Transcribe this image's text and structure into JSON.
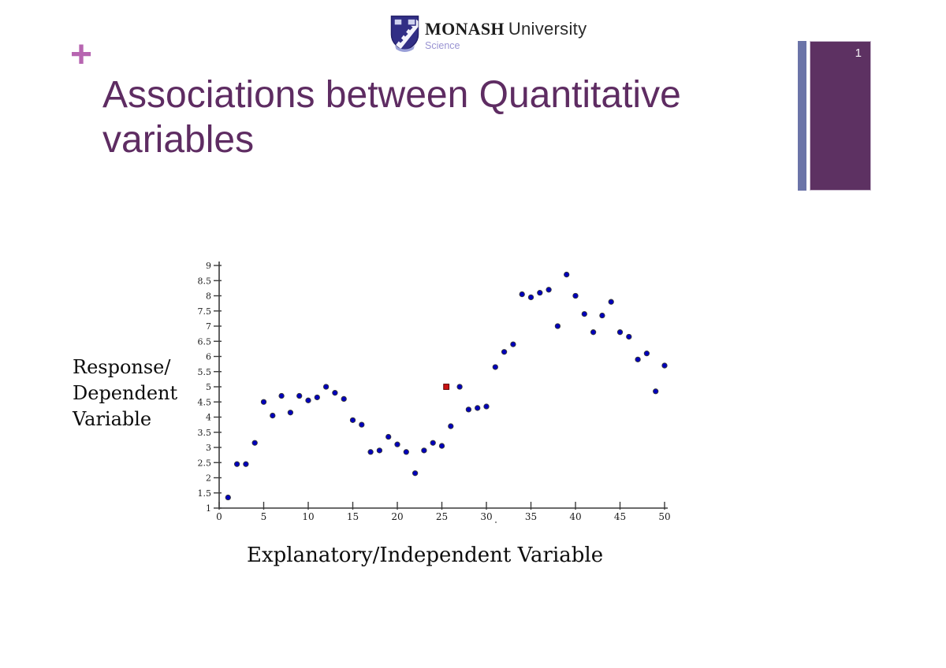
{
  "slide": {
    "plus_mark": "+",
    "title": {
      "line1": "Associations between Quantitative",
      "line2": "variables"
    },
    "page_number": "1"
  },
  "logo": {
    "wordmark": "MONASH",
    "wordmark_suffix": "University",
    "faculty": "Science"
  },
  "chart_labels": {
    "y_label_lines": [
      "Response/",
      "Dependent",
      "Variable"
    ],
    "x_label": "Explanatory/Independent Variable"
  },
  "colors": {
    "title_purple": "#5e2c62",
    "plus_pink": "#b765b1",
    "accent_bar_blue": "#6b74a8",
    "page_panel_purple": "#5d3162",
    "crest_indigo": "#312e85",
    "point_blue": "#0000bb",
    "point_edge": "#3a3a3a",
    "special_point_red": "#cc1111",
    "axis_color": "#3a3a3a"
  },
  "chart_data": {
    "type": "scatter",
    "title": "",
    "xlabel": "Explanatory/Independent Variable",
    "ylabel": "Response/ Dependent Variable",
    "x": [
      1,
      2,
      3,
      4,
      5,
      6,
      7,
      8,
      9,
      10,
      11,
      12,
      13,
      14,
      15,
      16,
      17,
      18,
      19,
      20,
      21,
      22,
      23,
      24,
      25,
      26,
      27,
      28,
      29,
      30,
      31,
      32,
      33,
      34,
      35,
      36,
      37,
      38,
      39,
      40,
      41,
      42,
      43,
      44,
      45,
      46,
      47,
      48,
      49,
      50
    ],
    "y": [
      1.35,
      2.45,
      2.45,
      3.15,
      4.5,
      4.05,
      4.7,
      4.15,
      4.7,
      4.55,
      4.65,
      5.0,
      4.8,
      4.6,
      3.9,
      3.75,
      2.85,
      2.9,
      3.35,
      3.1,
      2.85,
      2.15,
      2.9,
      3.15,
      3.05,
      3.7,
      5.0,
      4.25,
      4.3,
      4.35,
      5.65,
      6.15,
      6.4,
      8.05,
      7.95,
      8.1,
      8.2,
      7.0,
      8.7,
      8.0,
      7.4,
      6.8,
      7.35,
      7.8,
      6.8,
      6.65,
      5.9,
      6.1,
      4.85,
      5.7
    ],
    "special_point": {
      "x": 25.5,
      "y": 5.0,
      "shape": "square",
      "color": "#cc1111"
    },
    "xticks": [
      0,
      5,
      10,
      15,
      20,
      25,
      30,
      35,
      40,
      45,
      50
    ],
    "yticks": [
      1,
      1.5,
      2,
      2.5,
      3,
      3.5,
      4,
      4.5,
      5,
      5.5,
      6,
      6.5,
      7,
      7.5,
      8,
      8.5,
      9
    ],
    "xlim": [
      0,
      51
    ],
    "ylim": [
      1,
      9
    ],
    "grid": false,
    "legend": "none"
  }
}
